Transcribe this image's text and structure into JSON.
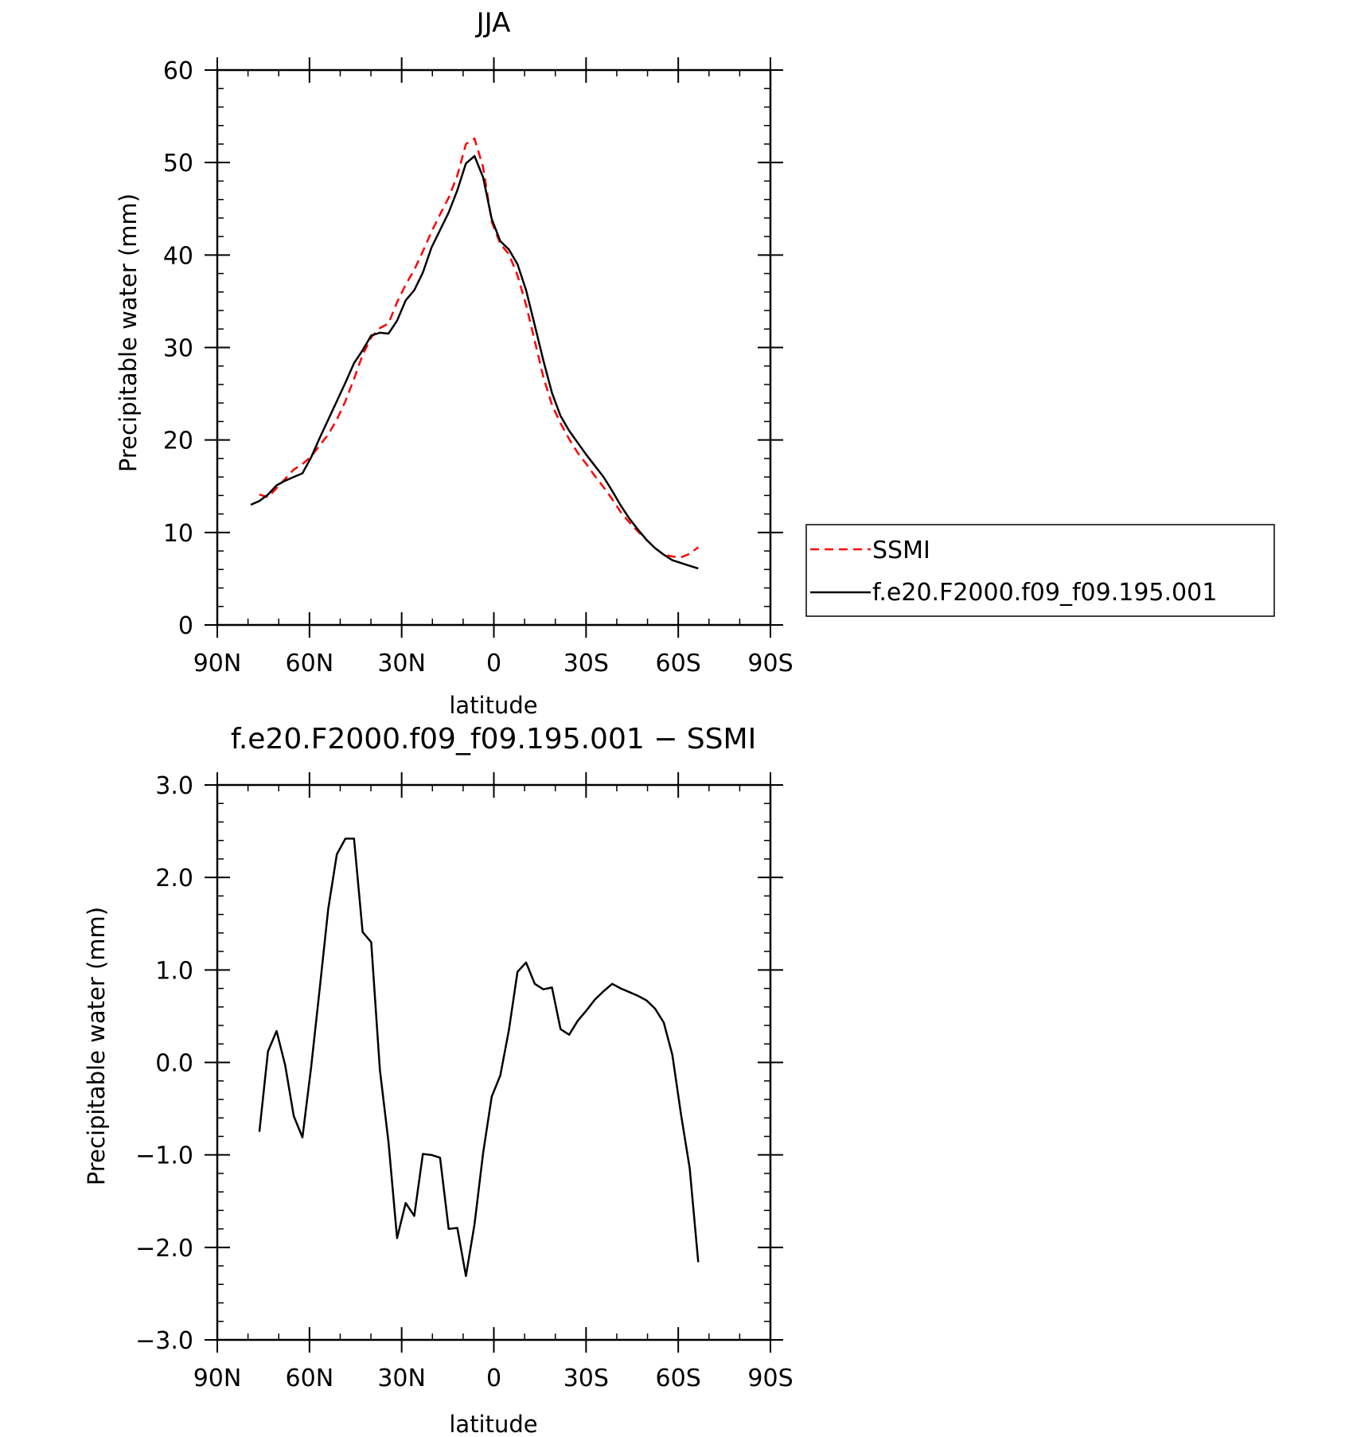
{
  "chart_data": [
    {
      "type": "line",
      "title": "JJA",
      "xlabel": "latitude",
      "ylabel": "Precipitable water (mm)",
      "xlim": [
        90,
        -90
      ],
      "ylim": [
        0,
        60
      ],
      "xticks": [
        90,
        60,
        30,
        0,
        -30,
        -60,
        -90
      ],
      "xtick_labels": [
        "90N",
        "60N",
        "30N",
        "0",
        "30S",
        "60S",
        "90S"
      ],
      "yticks": [
        0,
        10,
        20,
        30,
        40,
        50,
        60
      ],
      "ytick_labels": [
        "0",
        "10",
        "20",
        "30",
        "40",
        "50",
        "60"
      ],
      "grid": false,
      "legend_position": "right",
      "series": [
        {
          "name": "SSMI",
          "color": "#ff0000",
          "style": "dashed",
          "x": [
            76.3,
            73.5,
            70.7,
            67.9,
            65.1,
            62.3,
            59.5,
            56.7,
            53.9,
            51.1,
            48.3,
            45.5,
            42.7,
            39.9,
            37.1,
            34.3,
            31.5,
            28.7,
            25.9,
            23.1,
            20.3,
            17.5,
            14.7,
            11.9,
            9.1,
            6.3,
            3.5,
            0.7,
            -2.1,
            -4.9,
            -7.7,
            -10.5,
            -13.3,
            -16.1,
            -18.9,
            -21.7,
            -24.5,
            -27.3,
            -30.1,
            -32.9,
            -35.7,
            -38.5,
            -41.3,
            -44.1,
            -46.9,
            -49.7,
            -52.5,
            -55.3,
            -58.1,
            -60.9,
            -63.7,
            -66.5
          ],
          "y": [
            14.1,
            13.8,
            14.8,
            15.8,
            16.8,
            17.4,
            18.2,
            19.4,
            20.6,
            22.2,
            24.2,
            26.6,
            29.2,
            31.1,
            32.1,
            32.6,
            34.9,
            36.8,
            38.4,
            40.4,
            42.5,
            44.4,
            46.2,
            48.6,
            52.0,
            52.6,
            49.5,
            43.6,
            41.2,
            40.1,
            37.8,
            34.6,
            30.7,
            26.8,
            23.8,
            21.8,
            20.1,
            18.6,
            17.4,
            16.1,
            14.9,
            13.6,
            12.2,
            11.1,
            10.1,
            9.2,
            8.3,
            7.6,
            7.4,
            7.3,
            7.7,
            8.4
          ]
        },
        {
          "name": "f.e20.F2000.f09_f09.195.001",
          "color": "#000000",
          "style": "solid",
          "x": [
            79.1,
            76.3,
            73.5,
            70.7,
            67.9,
            65.1,
            62.3,
            59.5,
            56.7,
            53.9,
            51.1,
            48.3,
            45.5,
            42.7,
            39.9,
            37.1,
            34.3,
            31.5,
            28.7,
            25.9,
            23.1,
            20.3,
            17.5,
            14.7,
            11.9,
            9.1,
            6.3,
            3.5,
            0.7,
            -2.1,
            -4.9,
            -7.7,
            -10.5,
            -13.3,
            -16.1,
            -18.9,
            -21.7,
            -24.5,
            -27.3,
            -30.1,
            -32.9,
            -35.7,
            -38.5,
            -41.3,
            -44.1,
            -46.9,
            -49.7,
            -52.5,
            -55.3,
            -58.1,
            -60.9,
            -63.7,
            -66.5
          ],
          "y": [
            13.0,
            13.4,
            14.1,
            15.1,
            15.6,
            16.0,
            16.4,
            18.1,
            20.2,
            22.2,
            24.2,
            26.2,
            28.3,
            29.7,
            31.3,
            31.6,
            31.5,
            32.9,
            35.1,
            36.2,
            38.1,
            40.8,
            42.7,
            44.6,
            47.0,
            49.9,
            50.7,
            48.4,
            43.9,
            41.5,
            40.6,
            39.0,
            36.2,
            32.4,
            28.6,
            25.1,
            22.6,
            21.0,
            19.7,
            18.4,
            17.2,
            16.0,
            14.5,
            12.9,
            11.5,
            10.3,
            9.2,
            8.3,
            7.6,
            7.0,
            6.7,
            6.4,
            6.1
          ]
        }
      ]
    },
    {
      "type": "line",
      "title": "f.e20.F2000.f09_f09.195.001 − SSMI",
      "xlabel": "latitude",
      "ylabel": "Precipitable water (mm)",
      "xlim": [
        90,
        -90
      ],
      "ylim": [
        -3.0,
        3.0
      ],
      "xticks": [
        90,
        60,
        30,
        0,
        -30,
        -60,
        -90
      ],
      "xtick_labels": [
        "90N",
        "60N",
        "30N",
        "0",
        "30S",
        "60S",
        "90S"
      ],
      "yticks": [
        3.0,
        2.0,
        1.0,
        0.0,
        -1.0,
        -2.0,
        -3.0
      ],
      "ytick_labels": [
        "3.0",
        "2.0",
        "1.0",
        "0.0",
        "−1.0",
        "−2.0",
        "−3.0"
      ],
      "grid": false,
      "series": [
        {
          "color": "#000000",
          "style": "solid",
          "x": [
            76.3,
            73.5,
            70.7,
            67.9,
            65.1,
            62.3,
            59.5,
            56.7,
            53.9,
            51.1,
            48.3,
            45.5,
            42.7,
            39.9,
            37.1,
            34.3,
            31.5,
            28.7,
            25.9,
            23.1,
            20.3,
            17.5,
            14.7,
            11.9,
            9.1,
            6.3,
            3.5,
            0.7,
            -2.1,
            -4.9,
            -7.7,
            -10.5,
            -13.3,
            -16.1,
            -18.9,
            -21.7,
            -24.5,
            -27.3,
            -30.1,
            -32.9,
            -35.7,
            -38.5,
            -41.3,
            -44.1,
            -46.9,
            -49.7,
            -52.5,
            -55.3,
            -58.1,
            -60.9,
            -63.7,
            -66.5
          ],
          "y": [
            -0.75,
            0.12,
            0.34,
            -0.03,
            -0.58,
            -0.81,
            -0.06,
            0.79,
            1.66,
            2.25,
            2.42,
            2.42,
            1.41,
            1.3,
            -0.08,
            -0.86,
            -1.9,
            -1.52,
            -1.66,
            -0.99,
            -1.0,
            -1.03,
            -1.8,
            -1.79,
            -2.31,
            -1.75,
            -0.98,
            -0.37,
            -0.14,
            0.35,
            0.98,
            1.08,
            0.85,
            0.79,
            0.81,
            0.36,
            0.3,
            0.45,
            0.56,
            0.68,
            0.77,
            0.85,
            0.8,
            0.76,
            0.72,
            0.67,
            0.58,
            0.43,
            0.08,
            -0.56,
            -1.14,
            -2.16
          ]
        }
      ]
    }
  ]
}
